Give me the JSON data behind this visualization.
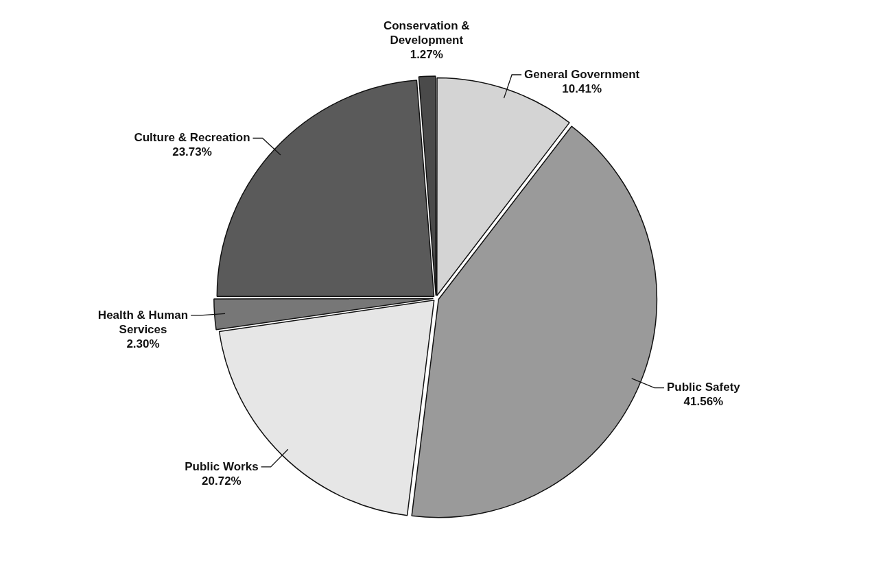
{
  "chart_data": {
    "type": "pie",
    "categories": [
      "General Government",
      "Public Safety",
      "Public Works",
      "Health & Human Services",
      "Culture & Recreation",
      "Conservation & Development"
    ],
    "values": [
      10.41,
      41.56,
      20.72,
      2.3,
      23.73,
      1.27
    ],
    "value_labels": [
      "10.41%",
      "41.56%",
      "20.72%",
      "2.30%",
      "23.73%",
      "1.27%"
    ],
    "colors": [
      "#d4d4d4",
      "#9a9a9a",
      "#e6e6e6",
      "#777777",
      "#5a5a5a",
      "#4a4a4a"
    ],
    "legend": false
  }
}
